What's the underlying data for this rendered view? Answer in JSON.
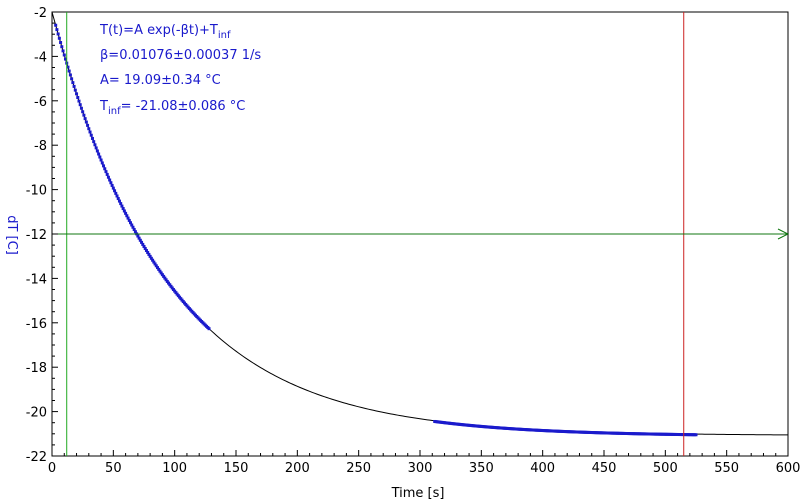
{
  "chart_data": {
    "type": "scatter",
    "xlabel": "Time [s]",
    "ylabel": "dT [C]",
    "xlim": [
      0,
      600
    ],
    "ylim": [
      -22,
      -2
    ],
    "xticks": [
      0,
      50,
      100,
      150,
      200,
      250,
      300,
      350,
      400,
      450,
      500,
      550,
      600
    ],
    "yticks": [
      -2,
      -4,
      -6,
      -8,
      -10,
      -12,
      -14,
      -16,
      -18,
      -20,
      -22
    ],
    "grid": false,
    "fit": {
      "model": "T(t)=A exp(-βt)+T_inf",
      "A": 19.09,
      "beta": 0.01076,
      "T_inf": -21.08,
      "x_range": [
        0,
        600
      ],
      "color": "#000000"
    },
    "annotations": {
      "line1": "T(t)=A exp(-βt)+T",
      "line1_sub": "inf",
      "line2": "β=0.01076±0.00037 1/s",
      "line3": "A= 19.09±0.34 °C",
      "line4_pre": "T",
      "line4_sub": "inf",
      "line4_post": "= -21.08±0.086 °C"
    },
    "series": [
      {
        "segments": [
          [
            3,
            128
          ],
          [
            312,
            525
          ]
        ],
        "color": "#1a1acc"
      }
    ],
    "cursors": {
      "vertical_green_x": 12,
      "vertical_red_x": 515,
      "horizontal_green_y": -12
    },
    "colors": {
      "data": "#1a1acc",
      "fit": "#000000",
      "green_cursor": "#22aa22",
      "red_cursor": "#cc2222"
    }
  }
}
